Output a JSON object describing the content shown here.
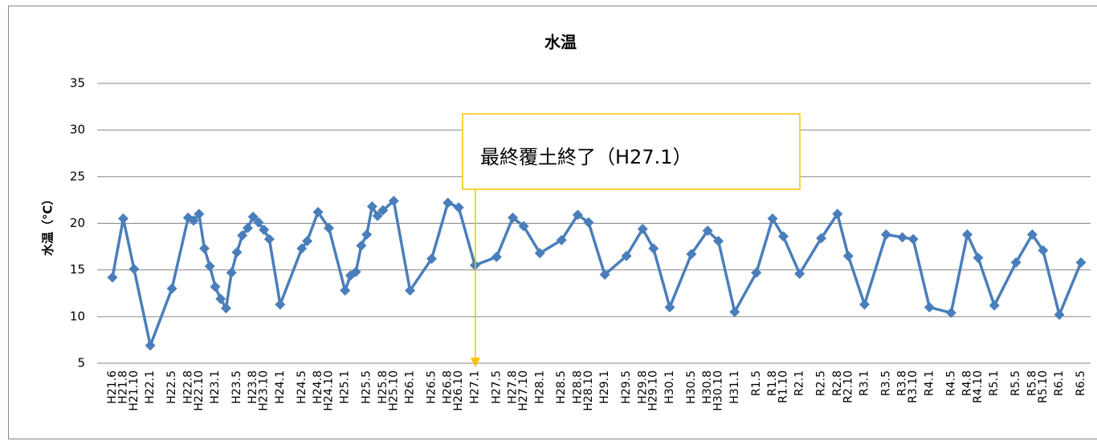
{
  "chart_data": {
    "type": "line",
    "title": "水温",
    "y_label": "水温（℃）",
    "x": [
      "H21.6",
      "H21.8",
      "H21.10",
      "H22.1",
      "H22.5",
      "H22.8",
      "H22.9",
      "H22.10",
      "H22.11",
      "H22.12",
      "H23.1",
      "H23.2",
      "H23.3",
      "H23.4",
      "H23.5",
      "H23.6",
      "H23.7",
      "H23.8",
      "H23.9",
      "H23.10",
      "H23.11",
      "H24.1",
      "H24.5",
      "H24.6",
      "H24.8",
      "H24.10",
      "H25.1",
      "H25.2",
      "H25.3",
      "H25.4",
      "H25.5",
      "H25.6",
      "H25.7",
      "H25.8",
      "H25.10",
      "H26.1",
      "H26.5",
      "H26.8",
      "H26.10",
      "H27.1",
      "H27.5",
      "H27.8",
      "H27.10",
      "H28.1",
      "H28.5",
      "H28.8",
      "H28.10",
      "H29.1",
      "H29.5",
      "H29.8",
      "H29.10",
      "H30.1",
      "H30.5",
      "H30.8",
      "H30.10",
      "H31.1",
      "R1.5",
      "R1.8",
      "R1.10",
      "R2.1",
      "R2.5",
      "R2.8",
      "R2.10",
      "R3.1",
      "R3.5",
      "R3.8",
      "R3.10",
      "R4.1",
      "R4.5",
      "R4.8",
      "R4.10",
      "R5.1",
      "R5.5",
      "R5.8",
      "R5.10",
      "R6.1",
      "R6.5"
    ],
    "series": [
      {
        "name": "水温",
        "color": "#4a7ebb",
        "values": [
          14.2,
          20.5,
          15.1,
          6.9,
          13.0,
          20.6,
          20.3,
          21.0,
          17.3,
          15.4,
          13.2,
          11.9,
          10.9,
          14.7,
          16.9,
          18.7,
          19.5,
          20.7,
          20.1,
          19.3,
          18.3,
          11.3,
          17.3,
          18.1,
          21.2,
          19.5,
          12.8,
          14.4,
          14.8,
          17.6,
          18.8,
          21.8,
          20.8,
          21.4,
          22.4,
          12.8,
          16.2,
          22.2,
          21.7,
          15.5,
          16.4,
          20.6,
          19.7,
          16.8,
          18.2,
          20.9,
          20.1,
          14.5,
          16.5,
          19.4,
          17.3,
          11.0,
          16.7,
          19.2,
          18.1,
          10.5,
          14.7,
          20.5,
          18.6,
          14.6,
          18.4,
          21.0,
          16.5,
          11.3,
          18.8,
          18.5,
          18.3,
          11.0,
          10.4,
          18.8,
          16.3,
          11.2,
          15.8,
          18.8,
          17.1,
          10.2,
          15.8
        ]
      }
    ],
    "xticks": [
      "H21.6",
      "H21.8",
      "H21.10",
      "H22.1",
      "H22.5",
      "H22.8",
      "H22.10",
      "H23.1",
      "H23.5",
      "H23.8",
      "H23.10",
      "H24.1",
      "H24.5",
      "H24.8",
      "H24.10",
      "H25.1",
      "H25.5",
      "H25.8",
      "H25.10",
      "H26.1",
      "H26.5",
      "H26.8",
      "H26.10",
      "H27.1",
      "H27.5",
      "H27.8",
      "H27.10",
      "H28.1",
      "H28.5",
      "H28.8",
      "H28.10",
      "H29.1",
      "H29.5",
      "H29.8",
      "H29.10",
      "H30.1",
      "H30.5",
      "H30.8",
      "H30.10",
      "H31.1",
      "R1.5",
      "R1.8",
      "R1.10",
      "R2.1",
      "R2.5",
      "R2.8",
      "R2.10",
      "R3.1",
      "R3.5",
      "R3.8",
      "R3.10",
      "R4.1",
      "R4.5",
      "R4.8",
      "R4.10",
      "R5.1",
      "R5.5",
      "R5.8",
      "R5.10",
      "R6.1",
      "R6.5"
    ],
    "ylim": [
      5,
      35
    ],
    "yticks": [
      5,
      10,
      15,
      20,
      25,
      30,
      35
    ],
    "grid": true,
    "annotation": "最終覆土終了（H27.1）"
  }
}
